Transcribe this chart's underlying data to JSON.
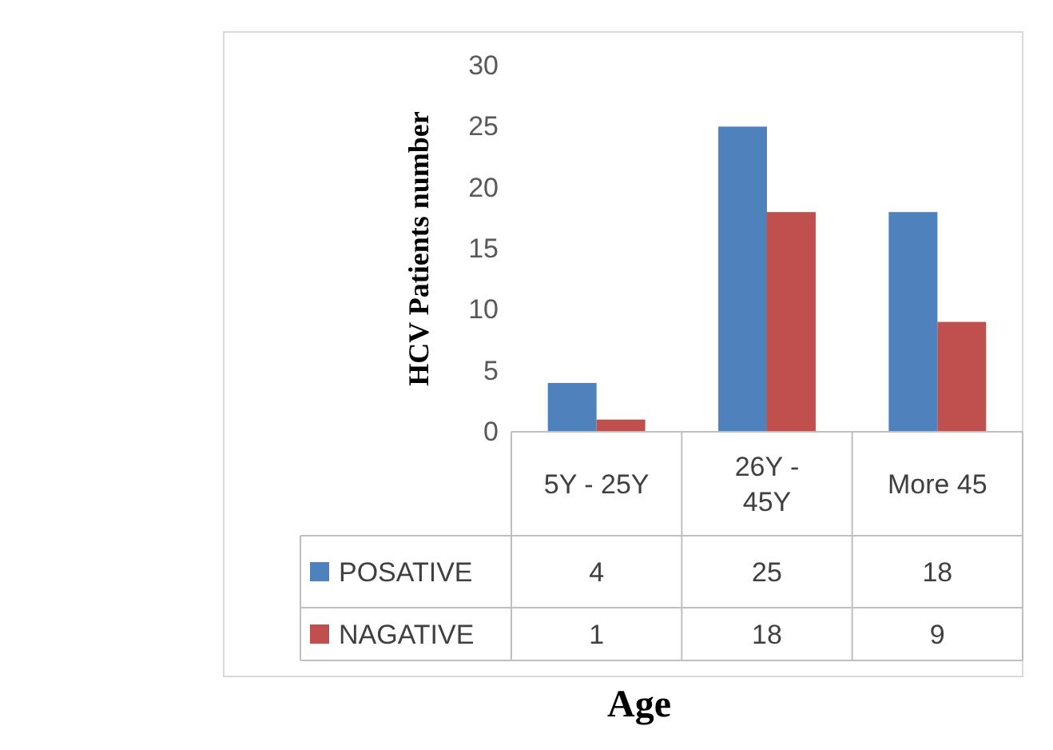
{
  "chart_data": {
    "type": "bar",
    "xlabel": "Age",
    "ylabel": "HCV Patients number",
    "categories": [
      "5Y - 25Y",
      "26Y - 45Y",
      "More 45"
    ],
    "series": [
      {
        "name": "POSATIVE",
        "color": "#4f81bd",
        "values": [
          4,
          25,
          18
        ]
      },
      {
        "name": "NAGATIVE",
        "color": "#c0504d",
        "values": [
          1,
          18,
          9
        ]
      }
    ],
    "ylim": [
      0,
      30
    ],
    "yticks": [
      0,
      5,
      10,
      15,
      20,
      25,
      30
    ],
    "grid": false,
    "legend": "bottom",
    "data_labels": true
  }
}
